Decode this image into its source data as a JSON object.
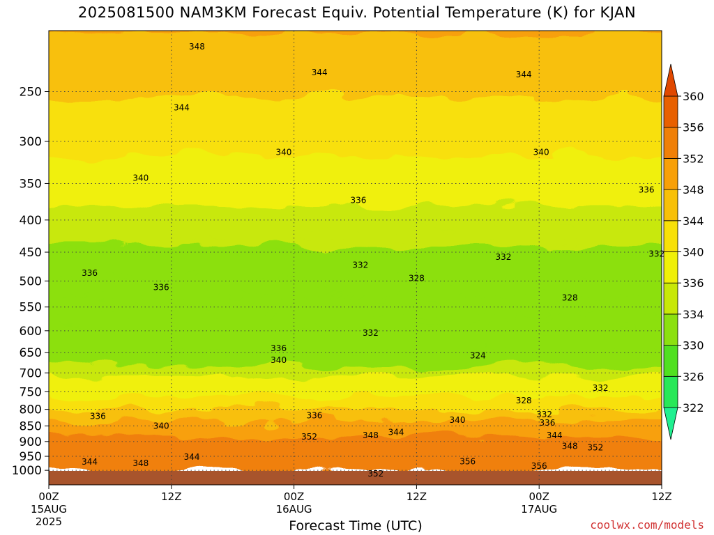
{
  "title": "2025081500 NAM3KM Forecast Equiv. Potential Temperature (K) for KJAN",
  "credit": "coolwx.com/models",
  "chart_data": {
    "type": "contour",
    "xlabel": "Forecast Time (UTC)",
    "ylabel": "",
    "y_scale": "log-pressure",
    "ylim": [
      1000,
      200
    ],
    "x_range_hours": [
      0,
      60
    ],
    "grid": true,
    "x_ticks": [
      {
        "hour": 0,
        "label": "00Z",
        "sub": "15AUG",
        "sub2": "2025"
      },
      {
        "hour": 12,
        "label": "12Z",
        "sub": "",
        "sub2": ""
      },
      {
        "hour": 24,
        "label": "00Z",
        "sub": "16AUG",
        "sub2": ""
      },
      {
        "hour": 36,
        "label": "12Z",
        "sub": "",
        "sub2": ""
      },
      {
        "hour": 48,
        "label": "00Z",
        "sub": "17AUG",
        "sub2": ""
      },
      {
        "hour": 60,
        "label": "12Z",
        "sub": "",
        "sub2": ""
      }
    ],
    "y_ticks": [
      250,
      300,
      350,
      400,
      450,
      500,
      550,
      600,
      650,
      700,
      750,
      800,
      850,
      900,
      950,
      1000
    ],
    "colorbar": {
      "levels": [
        322,
        326,
        330,
        334,
        336,
        340,
        344,
        348,
        352,
        356,
        360
      ],
      "labels": [
        "322",
        "326",
        "330",
        "334",
        "336",
        "340",
        "344",
        "348",
        "352",
        "356",
        "360"
      ],
      "colors": [
        "#20f090",
        "#28e858",
        "#50e020",
        "#8ce010",
        "#c8e808",
        "#f0f008",
        "#f8e008",
        "#f8c008",
        "#f8a008",
        "#f08008",
        "#e86000",
        "#e04800"
      ]
    },
    "profile": [
      {
        "p": 200,
        "theta": 349
      },
      {
        "p": 250,
        "theta": 345
      },
      {
        "p": 300,
        "theta": 342
      },
      {
        "p": 350,
        "theta": 339
      },
      {
        "p": 400,
        "theta": 336
      },
      {
        "p": 500,
        "theta": 333
      },
      {
        "p": 600,
        "theta": 331
      },
      {
        "p": 700,
        "theta": 333
      },
      {
        "p": 800,
        "theta": 339
      },
      {
        "p": 850,
        "theta": 345
      },
      {
        "p": 900,
        "theta": 350
      },
      {
        "p": 950,
        "theta": 353
      },
      {
        "p": 1000,
        "theta": 354
      }
    ],
    "contour_labels": [
      {
        "hour": 14.5,
        "p": 212,
        "text": "348"
      },
      {
        "hour": 26.5,
        "p": 233,
        "text": "344"
      },
      {
        "hour": 46.5,
        "p": 235,
        "text": "344"
      },
      {
        "hour": 13,
        "p": 265,
        "text": "344"
      },
      {
        "hour": 23,
        "p": 312,
        "text": "340"
      },
      {
        "hour": 48.2,
        "p": 312,
        "text": "340"
      },
      {
        "hour": 9,
        "p": 343,
        "text": "340"
      },
      {
        "hour": 30.3,
        "p": 372,
        "text": "336"
      },
      {
        "hour": 58.5,
        "p": 358,
        "text": "336"
      },
      {
        "hour": 4,
        "p": 486,
        "text": "336"
      },
      {
        "hour": 11,
        "p": 512,
        "text": "336"
      },
      {
        "hour": 30.5,
        "p": 472,
        "text": "332"
      },
      {
        "hour": 44.5,
        "p": 458,
        "text": "332"
      },
      {
        "hour": 59.5,
        "p": 453,
        "text": "332"
      },
      {
        "hour": 36,
        "p": 495,
        "text": "328"
      },
      {
        "hour": 51,
        "p": 532,
        "text": "328"
      },
      {
        "hour": 31.5,
        "p": 605,
        "text": "332"
      },
      {
        "hour": 22.5,
        "p": 640,
        "text": "336"
      },
      {
        "hour": 22.5,
        "p": 668,
        "text": "340"
      },
      {
        "hour": 42,
        "p": 657,
        "text": "324"
      },
      {
        "hour": 54,
        "p": 740,
        "text": "332"
      },
      {
        "hour": 46.5,
        "p": 775,
        "text": "328"
      },
      {
        "hour": 48.5,
        "p": 815,
        "text": "332"
      },
      {
        "hour": 48.8,
        "p": 840,
        "text": "336"
      },
      {
        "hour": 4.8,
        "p": 820,
        "text": "336"
      },
      {
        "hour": 26,
        "p": 818,
        "text": "336"
      },
      {
        "hour": 11,
        "p": 850,
        "text": "340"
      },
      {
        "hour": 40,
        "p": 832,
        "text": "340"
      },
      {
        "hour": 34,
        "p": 870,
        "text": "344"
      },
      {
        "hour": 49.5,
        "p": 880,
        "text": "344"
      },
      {
        "hour": 31.5,
        "p": 880,
        "text": "348"
      },
      {
        "hour": 25.5,
        "p": 885,
        "text": "352"
      },
      {
        "hour": 51,
        "p": 915,
        "text": "348"
      },
      {
        "hour": 53.5,
        "p": 920,
        "text": "352"
      },
      {
        "hour": 14,
        "p": 952,
        "text": "344"
      },
      {
        "hour": 4,
        "p": 970,
        "text": "344"
      },
      {
        "hour": 9,
        "p": 975,
        "text": "348"
      },
      {
        "hour": 41,
        "p": 968,
        "text": "356"
      },
      {
        "hour": 48,
        "p": 985,
        "text": "356"
      },
      {
        "hour": 32,
        "p": 1012,
        "text": "352"
      }
    ]
  }
}
